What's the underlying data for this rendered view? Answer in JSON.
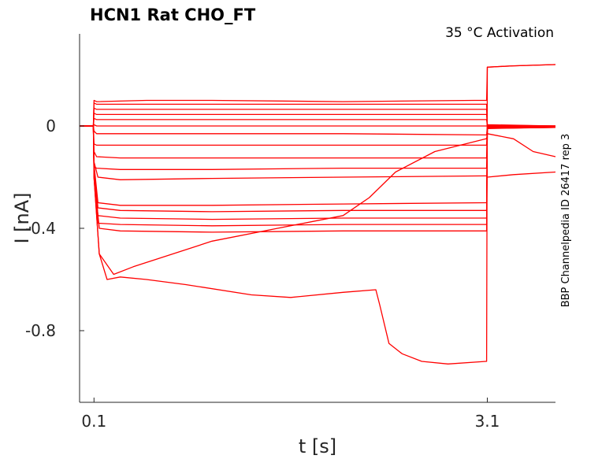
{
  "chart_data": {
    "type": "line",
    "title": "HCN1  Rat  CHO_FT",
    "subtitle": "35 °C  Activation",
    "side_label": "BBP Channelpedia ID 26417 rep 3",
    "xlabel": "t [s]",
    "ylabel": "I [nA]",
    "x_ticks": [
      0.1,
      3.1
    ],
    "x_tick_labels": [
      "0.1",
      "3.1"
    ],
    "y_ticks": [
      0,
      -0.4,
      -0.8
    ],
    "y_tick_labels": [
      "0",
      "-0.4",
      "-0.8"
    ],
    "xlim": [
      -0.01,
      3.62
    ],
    "ylim": [
      -1.08,
      0.36
    ],
    "grid": false,
    "line_color": "#ff0000",
    "series": [
      {
        "pre": 0.0,
        "x": [
          0.1,
          0.12,
          0.5,
          1.0,
          2.0,
          3.0,
          3.09
        ],
        "values": [
          0.1,
          0.095,
          0.1,
          0.1,
          0.095,
          0.1,
          0.1
        ],
        "post": [
          [
            3.1,
            0.23
          ],
          [
            3.3,
            0.235
          ],
          [
            3.62,
            0.24
          ]
        ]
      },
      {
        "pre": 0.0,
        "x": [
          0.1,
          0.12,
          1.0,
          2.0,
          3.09
        ],
        "values": [
          0.09,
          0.085,
          0.085,
          0.085,
          0.085
        ],
        "post": [
          [
            3.1,
            0.005
          ],
          [
            3.62,
            0.0
          ]
        ]
      },
      {
        "pre": 0.0,
        "x": [
          0.1,
          0.12,
          1.0,
          2.0,
          3.09
        ],
        "values": [
          0.07,
          0.065,
          0.065,
          0.065,
          0.065
        ],
        "post": [
          [
            3.1,
            0.003
          ],
          [
            3.62,
            0.0
          ]
        ]
      },
      {
        "pre": 0.0,
        "x": [
          0.1,
          0.12,
          1.0,
          2.0,
          3.09
        ],
        "values": [
          0.05,
          0.045,
          0.045,
          0.045,
          0.045
        ],
        "post": [
          [
            3.1,
            0.002
          ],
          [
            3.62,
            0.0
          ]
        ]
      },
      {
        "pre": 0.0,
        "x": [
          0.1,
          0.12,
          1.0,
          2.0,
          3.09
        ],
        "values": [
          0.03,
          0.025,
          0.025,
          0.025,
          0.025
        ],
        "post": [
          [
            3.1,
            0.001
          ],
          [
            3.62,
            0.0
          ]
        ]
      },
      {
        "pre": 0.0,
        "x": [
          0.1,
          0.12,
          1.0,
          2.0,
          3.09
        ],
        "values": [
          0.005,
          0.0,
          0.0,
          0.0,
          0.0
        ],
        "post": [
          [
            3.1,
            0.0
          ],
          [
            3.62,
            0.0
          ]
        ]
      },
      {
        "pre": 0.0,
        "x": [
          0.1,
          0.12,
          1.0,
          2.0,
          3.09
        ],
        "values": [
          -0.02,
          -0.03,
          -0.03,
          -0.03,
          -0.035
        ],
        "post": [
          [
            3.1,
            -0.003
          ],
          [
            3.62,
            -0.002
          ]
        ]
      },
      {
        "pre": 0.0,
        "x": [
          0.1,
          0.12,
          1.0,
          2.0,
          3.09
        ],
        "values": [
          -0.07,
          -0.075,
          -0.075,
          -0.075,
          -0.075
        ],
        "post": [
          [
            3.1,
            -0.005
          ],
          [
            3.62,
            -0.003
          ]
        ]
      },
      {
        "pre": 0.0,
        "x": [
          0.1,
          0.12,
          0.3,
          1.0,
          2.0,
          3.09
        ],
        "values": [
          -0.1,
          -0.12,
          -0.125,
          -0.125,
          -0.125,
          -0.125
        ],
        "post": [
          [
            3.1,
            -0.006
          ],
          [
            3.62,
            -0.004
          ]
        ]
      },
      {
        "pre": 0.0,
        "x": [
          0.1,
          0.12,
          0.3,
          1.0,
          2.0,
          3.09
        ],
        "values": [
          -0.16,
          -0.165,
          -0.17,
          -0.17,
          -0.165,
          -0.165
        ],
        "post": [
          [
            3.1,
            -0.007
          ],
          [
            3.62,
            -0.005
          ]
        ]
      },
      {
        "pre": 0.0,
        "x": [
          0.1,
          0.13,
          0.3,
          1.0,
          2.0,
          3.09
        ],
        "values": [
          -0.14,
          -0.2,
          -0.21,
          -0.205,
          -0.2,
          -0.195
        ],
        "post": [
          [
            3.1,
            -0.2
          ],
          [
            3.3,
            -0.19
          ],
          [
            3.62,
            -0.18
          ]
        ]
      },
      {
        "pre": 0.0,
        "x": [
          0.1,
          0.13,
          0.3,
          1.0,
          2.0,
          3.09
        ],
        "values": [
          -0.15,
          -0.3,
          -0.31,
          -0.31,
          -0.305,
          -0.3
        ],
        "post": [
          [
            3.1,
            -0.008
          ],
          [
            3.62,
            -0.005
          ]
        ]
      },
      {
        "pre": 0.0,
        "x": [
          0.1,
          0.13,
          0.3,
          1.0,
          2.0,
          3.09
        ],
        "values": [
          -0.16,
          -0.32,
          -0.33,
          -0.335,
          -0.33,
          -0.33
        ],
        "post": [
          [
            3.1,
            -0.008
          ],
          [
            3.62,
            -0.005
          ]
        ]
      },
      {
        "pre": 0.0,
        "x": [
          0.1,
          0.13,
          0.3,
          1.0,
          2.0,
          3.09
        ],
        "values": [
          -0.17,
          -0.35,
          -0.36,
          -0.365,
          -0.36,
          -0.36
        ],
        "post": [
          [
            3.1,
            -0.009
          ],
          [
            3.62,
            -0.006
          ]
        ]
      },
      {
        "pre": 0.0,
        "x": [
          0.1,
          0.13,
          0.3,
          1.0,
          2.0,
          3.09
        ],
        "values": [
          -0.18,
          -0.38,
          -0.385,
          -0.39,
          -0.385,
          -0.385
        ],
        "post": [
          [
            3.1,
            -0.009
          ],
          [
            3.62,
            -0.006
          ]
        ]
      },
      {
        "pre": 0.0,
        "x": [
          0.1,
          0.14,
          0.3,
          1.0,
          2.0,
          3.09
        ],
        "values": [
          -0.2,
          -0.4,
          -0.41,
          -0.415,
          -0.41,
          -0.41
        ],
        "post": [
          [
            3.1,
            -0.01
          ],
          [
            3.62,
            -0.006
          ]
        ]
      },
      {
        "pre": 0.0,
        "x": [
          0.1,
          0.14,
          0.25,
          0.4,
          1.0,
          1.5,
          2.0,
          2.2,
          2.4,
          2.7,
          3.09
        ],
        "values": [
          -0.2,
          -0.5,
          -0.58,
          -0.55,
          -0.45,
          -0.4,
          -0.35,
          -0.28,
          -0.18,
          -0.1,
          -0.05
        ],
        "post": [
          [
            3.1,
            -0.03
          ],
          [
            3.3,
            -0.05
          ],
          [
            3.45,
            -0.1
          ],
          [
            3.62,
            -0.12
          ]
        ]
      },
      {
        "pre": 0.0,
        "x": [
          0.1,
          0.14,
          0.2,
          0.3,
          0.5,
          0.8,
          1.3,
          1.6,
          2.0,
          2.25,
          2.28,
          2.35,
          2.45,
          2.6,
          2.8,
          3.09
        ],
        "values": [
          -0.2,
          -0.5,
          -0.6,
          -0.59,
          -0.6,
          -0.62,
          -0.66,
          -0.67,
          -0.65,
          -0.64,
          -0.7,
          -0.85,
          -0.89,
          -0.92,
          -0.93,
          -0.92
        ],
        "post": [
          [
            3.1,
            0.23
          ],
          [
            3.3,
            0.235
          ],
          [
            3.62,
            0.24
          ]
        ]
      }
    ]
  }
}
